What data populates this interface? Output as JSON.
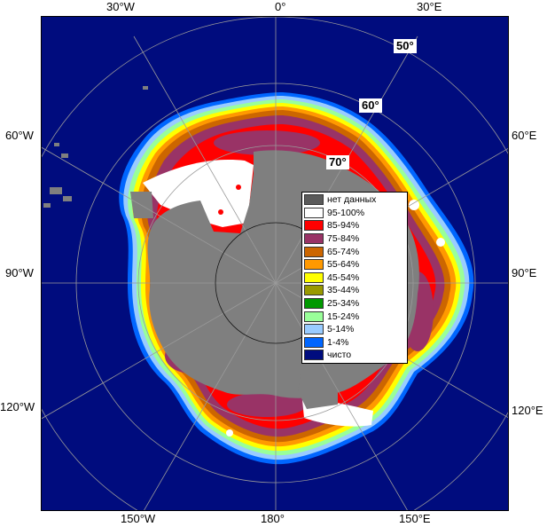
{
  "map": {
    "longitude_labels": {
      "top": [
        "30°W",
        "0°",
        "30°E"
      ],
      "left": [
        "60°W",
        "90°W",
        "120°W"
      ],
      "right": [
        "60°E",
        "90°E",
        "120°E"
      ],
      "bottom": [
        "150°W",
        "180°",
        "150°E"
      ]
    },
    "latitude_labels": [
      "50°",
      "60°",
      "70°"
    ],
    "colors": {
      "ocean": "#000c7e",
      "land": "#7f7f7f",
      "no_data": "#5a5a5a",
      "grid": "#9a9a9a"
    }
  },
  "legend": {
    "items": [
      {
        "label": "нет данных",
        "color": "#5a5a5a"
      },
      {
        "label": "95-100%",
        "color": "#ffffff"
      },
      {
        "label": "85-94%",
        "color": "#ff0000"
      },
      {
        "label": "75-84%",
        "color": "#993366"
      },
      {
        "label": "65-74%",
        "color": "#cc6600"
      },
      {
        "label": "55-64%",
        "color": "#ff9900"
      },
      {
        "label": "45-54%",
        "color": "#ffff00"
      },
      {
        "label": "35-44%",
        "color": "#999900"
      },
      {
        "label": "25-34%",
        "color": "#009900"
      },
      {
        "label": "15-24%",
        "color": "#99ff99"
      },
      {
        "label": "5-14%",
        "color": "#99ccff"
      },
      {
        "label": "1-4%",
        "color": "#0066ff"
      },
      {
        "label": "чисто",
        "color": "#000c7e"
      }
    ]
  }
}
